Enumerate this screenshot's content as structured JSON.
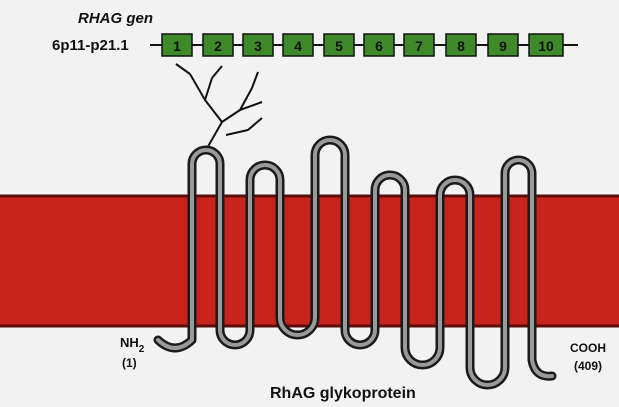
{
  "gene": {
    "name": "RHAG gen",
    "locus": "6p11-p21.1",
    "exons": [
      "1",
      "2",
      "3",
      "4",
      "5",
      "6",
      "7",
      "8",
      "9",
      "10"
    ]
  },
  "protein": {
    "name": "RhAG glykoprotein",
    "n_terminus": "NH",
    "n_subscript": "2",
    "n_position": "(1)",
    "c_terminus": "COOH",
    "c_position": "(409)"
  }
}
